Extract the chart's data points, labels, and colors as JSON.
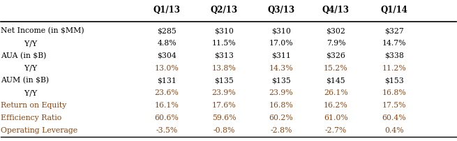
{
  "columns": [
    "",
    "Q1/13",
    "Q2/13",
    "Q3/13",
    "Q4/13",
    "Q1/14"
  ],
  "rows": [
    {
      "label": "Net Income (in $MM)",
      "values": [
        "$285",
        "$310",
        "$310",
        "$302",
        "$327"
      ],
      "label_color": "#000000",
      "value_color": "#000000",
      "label_indent": false
    },
    {
      "label": "  Y/Y",
      "values": [
        "4.8%",
        "11.5%",
        "17.0%",
        "7.9%",
        "14.7%"
      ],
      "label_color": "#000000",
      "value_color": "#000000",
      "label_indent": true
    },
    {
      "label": "AUA (in $B)",
      "values": [
        "$304",
        "$313",
        "$311",
        "$326",
        "$338"
      ],
      "label_color": "#000000",
      "value_color": "#000000",
      "label_indent": false
    },
    {
      "label": "  Y/Y",
      "values": [
        "13.0%",
        "13.8%",
        "14.3%",
        "15.2%",
        "11.2%"
      ],
      "label_color": "#000000",
      "value_color": "#8B4513",
      "label_indent": true
    },
    {
      "label": "AUM (in $B)",
      "values": [
        "$131",
        "$135",
        "$135",
        "$145",
        "$153"
      ],
      "label_color": "#000000",
      "value_color": "#000000",
      "label_indent": false
    },
    {
      "label": "  Y/Y",
      "values": [
        "23.6%",
        "23.9%",
        "23.9%",
        "26.1%",
        "16.8%"
      ],
      "label_color": "#000000",
      "value_color": "#8B4513",
      "label_indent": true
    },
    {
      "label": "Return on Equity",
      "values": [
        "16.1%",
        "17.6%",
        "16.8%",
        "16.2%",
        "17.5%"
      ],
      "label_color": "#8B4513",
      "value_color": "#8B4513",
      "label_indent": false
    },
    {
      "label": "Efficiency Ratio",
      "values": [
        "60.6%",
        "59.6%",
        "60.2%",
        "61.0%",
        "60.4%"
      ],
      "label_color": "#8B4513",
      "value_color": "#8B4513",
      "label_indent": false
    },
    {
      "label": "Operating Leverage",
      "values": [
        "-3.5%",
        "-0.8%",
        "-2.8%",
        "-2.7%",
        "0.4%"
      ],
      "label_color": "#8B4513",
      "value_color": "#8B4513",
      "label_indent": false
    }
  ],
  "header_bold": true,
  "bg_color": "#ffffff",
  "font_size": 7.8,
  "header_font_size": 8.5,
  "figwidth": 6.55,
  "figheight": 2.02,
  "dpi": 100
}
